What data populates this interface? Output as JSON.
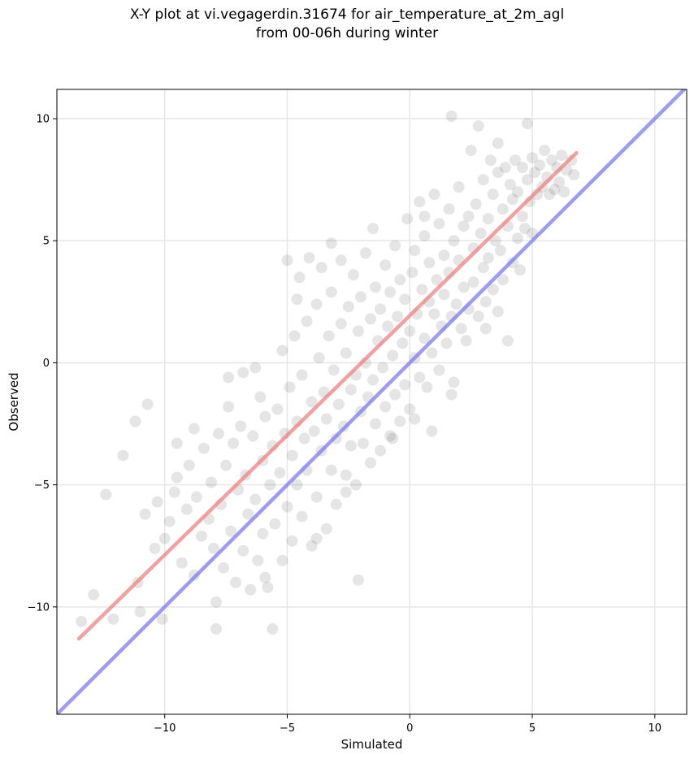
{
  "chart_data": {
    "type": "scatter",
    "title_line1": "X-Y plot at vi.vegagerdin.31674 for air_temperature_at_2m_agl",
    "title_line2": "from 00-06h during winter",
    "xlabel": "Simulated",
    "ylabel": "Observed",
    "xlim": [
      -14.4,
      11.3
    ],
    "ylim": [
      -14.4,
      11.2
    ],
    "xticks": [
      -10,
      -5,
      0,
      5,
      10
    ],
    "yticks": [
      -10,
      -5,
      0,
      5,
      10
    ],
    "xtick_labels": [
      "−10",
      "−5",
      "0",
      "5",
      "10"
    ],
    "ytick_labels": [
      "−10",
      "−5",
      "0",
      "5",
      "10"
    ],
    "grid": true,
    "point_color": "#333333",
    "lines": [
      {
        "color": "#f08080",
        "x": [
          -13.5,
          6.8
        ],
        "y": [
          -11.3,
          8.6
        ]
      },
      {
        "color": "#7b7bf0",
        "x": [
          -14.4,
          11.3
        ],
        "y": [
          -14.4,
          11.3
        ]
      }
    ],
    "points": [
      [
        -13.4,
        -10.6
      ],
      [
        -12.9,
        -9.5
      ],
      [
        -12.4,
        -5.4
      ],
      [
        -12.1,
        -10.5
      ],
      [
        -11.7,
        -3.8
      ],
      [
        -11.2,
        -2.4
      ],
      [
        -11.1,
        -9.0
      ],
      [
        -11.0,
        -10.2
      ],
      [
        -10.8,
        -6.2
      ],
      [
        -10.7,
        -1.7
      ],
      [
        -10.4,
        -7.6
      ],
      [
        -10.3,
        -5.7
      ],
      [
        -10.1,
        -10.5
      ],
      [
        -10.0,
        -7.2
      ],
      [
        -9.8,
        -6.5
      ],
      [
        -9.6,
        -5.3
      ],
      [
        -9.5,
        -3.3
      ],
      [
        -9.3,
        -8.2
      ],
      [
        -9.1,
        -6.0
      ],
      [
        -9.0,
        -4.2
      ],
      [
        -8.8,
        -8.7
      ],
      [
        -8.7,
        -5.5
      ],
      [
        -8.5,
        -7.1
      ],
      [
        -8.4,
        -3.5
      ],
      [
        -8.2,
        -6.4
      ],
      [
        -8.1,
        -4.9
      ],
      [
        -8.0,
        -7.6
      ],
      [
        -7.9,
        -9.8
      ],
      [
        -7.9,
        -10.9
      ],
      [
        -7.8,
        -2.9
      ],
      [
        -7.7,
        -5.8
      ],
      [
        -7.6,
        -8.4
      ],
      [
        -7.5,
        -4.2
      ],
      [
        -7.4,
        -0.6
      ],
      [
        -7.3,
        -6.9
      ],
      [
        -7.2,
        -3.3
      ],
      [
        -7.1,
        -9.0
      ],
      [
        -7.0,
        -5.2
      ],
      [
        -6.9,
        -2.6
      ],
      [
        -6.8,
        -7.7
      ],
      [
        -6.8,
        -0.4
      ],
      [
        -6.7,
        -4.6
      ],
      [
        -6.6,
        -6.2
      ],
      [
        -6.5,
        -9.3
      ],
      [
        -6.4,
        -3.0
      ],
      [
        -6.3,
        -5.6
      ],
      [
        -6.2,
        -8.1
      ],
      [
        -6.1,
        -1.4
      ],
      [
        -6.0,
        -4.0
      ],
      [
        -6.0,
        -7.0
      ],
      [
        -5.9,
        -2.2
      ],
      [
        -5.8,
        -9.2
      ],
      [
        -5.7,
        -5.0
      ],
      [
        -5.6,
        -3.4
      ],
      [
        -5.6,
        -10.9
      ],
      [
        -5.5,
        -6.6
      ],
      [
        -5.4,
        -1.9
      ],
      [
        -5.3,
        -4.5
      ],
      [
        -5.2,
        -8.1
      ],
      [
        -5.2,
        0.5
      ],
      [
        -5.1,
        -2.9
      ],
      [
        -5.0,
        -5.9
      ],
      [
        -5.0,
        4.2
      ],
      [
        -4.9,
        -1.0
      ],
      [
        -4.8,
        -3.8
      ],
      [
        -4.8,
        -7.3
      ],
      [
        -4.7,
        1.1
      ],
      [
        -4.6,
        -2.4
      ],
      [
        -4.6,
        -5.0
      ],
      [
        -4.5,
        3.5
      ],
      [
        -4.4,
        -0.5
      ],
      [
        -4.4,
        -6.3
      ],
      [
        -4.3,
        -3.1
      ],
      [
        -4.2,
        1.7
      ],
      [
        -4.2,
        -4.4
      ],
      [
        -4.1,
        4.3
      ],
      [
        -4.0,
        -1.6
      ],
      [
        -4.0,
        -7.5
      ],
      [
        -3.9,
        -2.8
      ],
      [
        -3.8,
        2.4
      ],
      [
        -3.8,
        -5.5
      ],
      [
        -3.7,
        0.2
      ],
      [
        -3.6,
        -3.6
      ],
      [
        -3.6,
        3.9
      ],
      [
        -3.5,
        -1.2
      ],
      [
        -3.4,
        -6.8
      ],
      [
        -3.4,
        -2.3
      ],
      [
        -3.3,
        1.1
      ],
      [
        -3.2,
        -4.4
      ],
      [
        -3.2,
        2.9
      ],
      [
        -3.1,
        -0.3
      ],
      [
        -3.0,
        -3.1
      ],
      [
        -3.0,
        -5.8
      ],
      [
        -2.9,
        -1.7
      ],
      [
        -2.8,
        1.6
      ],
      [
        -2.8,
        4.2
      ],
      [
        -2.7,
        -2.6
      ],
      [
        -2.6,
        -4.6
      ],
      [
        -2.6,
        0.4
      ],
      [
        -2.5,
        2.3
      ],
      [
        -2.4,
        -1.1
      ],
      [
        -2.4,
        -3.4
      ],
      [
        -2.3,
        3.6
      ],
      [
        -2.2,
        -0.5
      ],
      [
        -2.2,
        -5.0
      ],
      [
        -2.1,
        1.3
      ],
      [
        -2.0,
        -2.0
      ],
      [
        -2.0,
        2.7
      ],
      [
        -1.9,
        -3.3
      ],
      [
        -1.8,
        0.0
      ],
      [
        -1.8,
        4.5
      ],
      [
        -1.7,
        -1.4
      ],
      [
        -1.6,
        1.8
      ],
      [
        -1.6,
        -4.1
      ],
      [
        -1.5,
        -0.7
      ],
      [
        -1.4,
        3.1
      ],
      [
        -1.4,
        -2.5
      ],
      [
        -1.3,
        0.9
      ],
      [
        -1.2,
        -3.6
      ],
      [
        -1.2,
        2.2
      ],
      [
        -1.1,
        -0.2
      ],
      [
        -1.0,
        4.0
      ],
      [
        -1.0,
        -1.8
      ],
      [
        -0.9,
        1.5
      ],
      [
        -0.8,
        -3.0
      ],
      [
        -0.8,
        2.9
      ],
      [
        -0.7,
        0.3
      ],
      [
        -0.6,
        -1.3
      ],
      [
        -0.6,
        4.8
      ],
      [
        -0.5,
        1.9
      ],
      [
        -0.4,
        -2.4
      ],
      [
        -0.4,
        3.4
      ],
      [
        -0.3,
        0.8
      ],
      [
        -0.2,
        -0.9
      ],
      [
        -0.2,
        2.6
      ],
      [
        -0.1,
        5.9
      ],
      [
        0.0,
        1.3
      ],
      [
        0.0,
        -1.9
      ],
      [
        0.1,
        3.7
      ],
      [
        0.2,
        0.2
      ],
      [
        0.2,
        4.6
      ],
      [
        0.3,
        2.0
      ],
      [
        0.4,
        -0.6
      ],
      [
        0.4,
        6.6
      ],
      [
        0.5,
        3.0
      ],
      [
        0.6,
        1.0
      ],
      [
        0.6,
        5.2
      ],
      [
        0.7,
        -1.0
      ],
      [
        0.8,
        2.5
      ],
      [
        0.8,
        4.1
      ],
      [
        0.9,
        0.4
      ],
      [
        1.0,
        6.9
      ],
      [
        1.0,
        2.0
      ],
      [
        1.1,
        3.4
      ],
      [
        1.2,
        -0.3
      ],
      [
        1.2,
        5.7
      ],
      [
        1.3,
        1.5
      ],
      [
        1.4,
        4.4
      ],
      [
        1.4,
        2.8
      ],
      [
        1.5,
        0.8
      ],
      [
        1.6,
        6.3
      ],
      [
        1.6,
        3.7
      ],
      [
        1.7,
        1.9
      ],
      [
        1.8,
        5.0
      ],
      [
        1.8,
        -0.8
      ],
      [
        1.9,
        2.4
      ],
      [
        2.0,
        7.2
      ],
      [
        2.0,
        4.2
      ],
      [
        2.1,
        1.4
      ],
      [
        2.2,
        5.6
      ],
      [
        2.2,
        3.1
      ],
      [
        2.3,
        0.9
      ],
      [
        2.4,
        6.0
      ],
      [
        2.4,
        2.2
      ],
      [
        2.5,
        8.7
      ],
      [
        2.6,
        4.7
      ],
      [
        2.6,
        3.3
      ],
      [
        2.7,
        6.5
      ],
      [
        2.8,
        1.9
      ],
      [
        2.8,
        9.7
      ],
      [
        2.9,
        5.3
      ],
      [
        3.0,
        3.9
      ],
      [
        3.0,
        7.5
      ],
      [
        3.1,
        2.5
      ],
      [
        3.2,
        5.9
      ],
      [
        3.2,
        4.3
      ],
      [
        3.3,
        8.3
      ],
      [
        3.4,
        3.0
      ],
      [
        3.4,
        6.9
      ],
      [
        3.5,
        5.0
      ],
      [
        3.6,
        2.1
      ],
      [
        3.6,
        7.8
      ],
      [
        3.7,
        4.6
      ],
      [
        3.8,
        6.3
      ],
      [
        3.8,
        3.4
      ],
      [
        3.9,
        8.0
      ],
      [
        4.0,
        0.9
      ],
      [
        4.0,
        5.6
      ],
      [
        4.1,
        7.3
      ],
      [
        4.2,
        4.1
      ],
      [
        4.2,
        6.7
      ],
      [
        4.3,
        8.3
      ],
      [
        4.4,
        5.1
      ],
      [
        4.4,
        7.0
      ],
      [
        4.5,
        3.8
      ],
      [
        4.6,
        6.0
      ],
      [
        4.6,
        8.0
      ],
      [
        4.7,
        5.5
      ],
      [
        4.8,
        7.5
      ],
      [
        4.8,
        9.8
      ],
      [
        4.9,
        6.6
      ],
      [
        5.0,
        8.4
      ],
      [
        5.0,
        5.3
      ],
      [
        5.1,
        7.8
      ],
      [
        5.2,
        6.9
      ],
      [
        5.3,
        8.1
      ],
      [
        5.4,
        7.2
      ],
      [
        5.5,
        8.7
      ],
      [
        5.6,
        7.6
      ],
      [
        5.7,
        6.9
      ],
      [
        5.8,
        8.3
      ],
      [
        5.9,
        7.1
      ],
      [
        6.0,
        8.0
      ],
      [
        6.1,
        7.4
      ],
      [
        6.2,
        8.5
      ],
      [
        6.3,
        7.0
      ],
      [
        6.4,
        7.9
      ],
      [
        6.6,
        8.3
      ],
      [
        6.7,
        7.7
      ],
      [
        1.7,
        10.1
      ],
      [
        3.6,
        9.0
      ],
      [
        -2.1,
        -8.9
      ],
      [
        -3.8,
        -7.2
      ],
      [
        -5.9,
        -8.8
      ],
      [
        -0.7,
        -3.1
      ],
      [
        0.2,
        -2.3
      ],
      [
        1.7,
        -1.3
      ],
      [
        -2.6,
        -5.3
      ],
      [
        3.1,
        1.4
      ],
      [
        0.9,
        -2.8
      ],
      [
        -6.3,
        -0.2
      ],
      [
        -7.4,
        -1.8
      ],
      [
        -8.8,
        -2.7
      ],
      [
        -9.5,
        -4.7
      ],
      [
        -4.6,
        2.6
      ],
      [
        -3.2,
        4.9
      ],
      [
        -1.5,
        5.5
      ],
      [
        0.6,
        6.0
      ]
    ]
  }
}
